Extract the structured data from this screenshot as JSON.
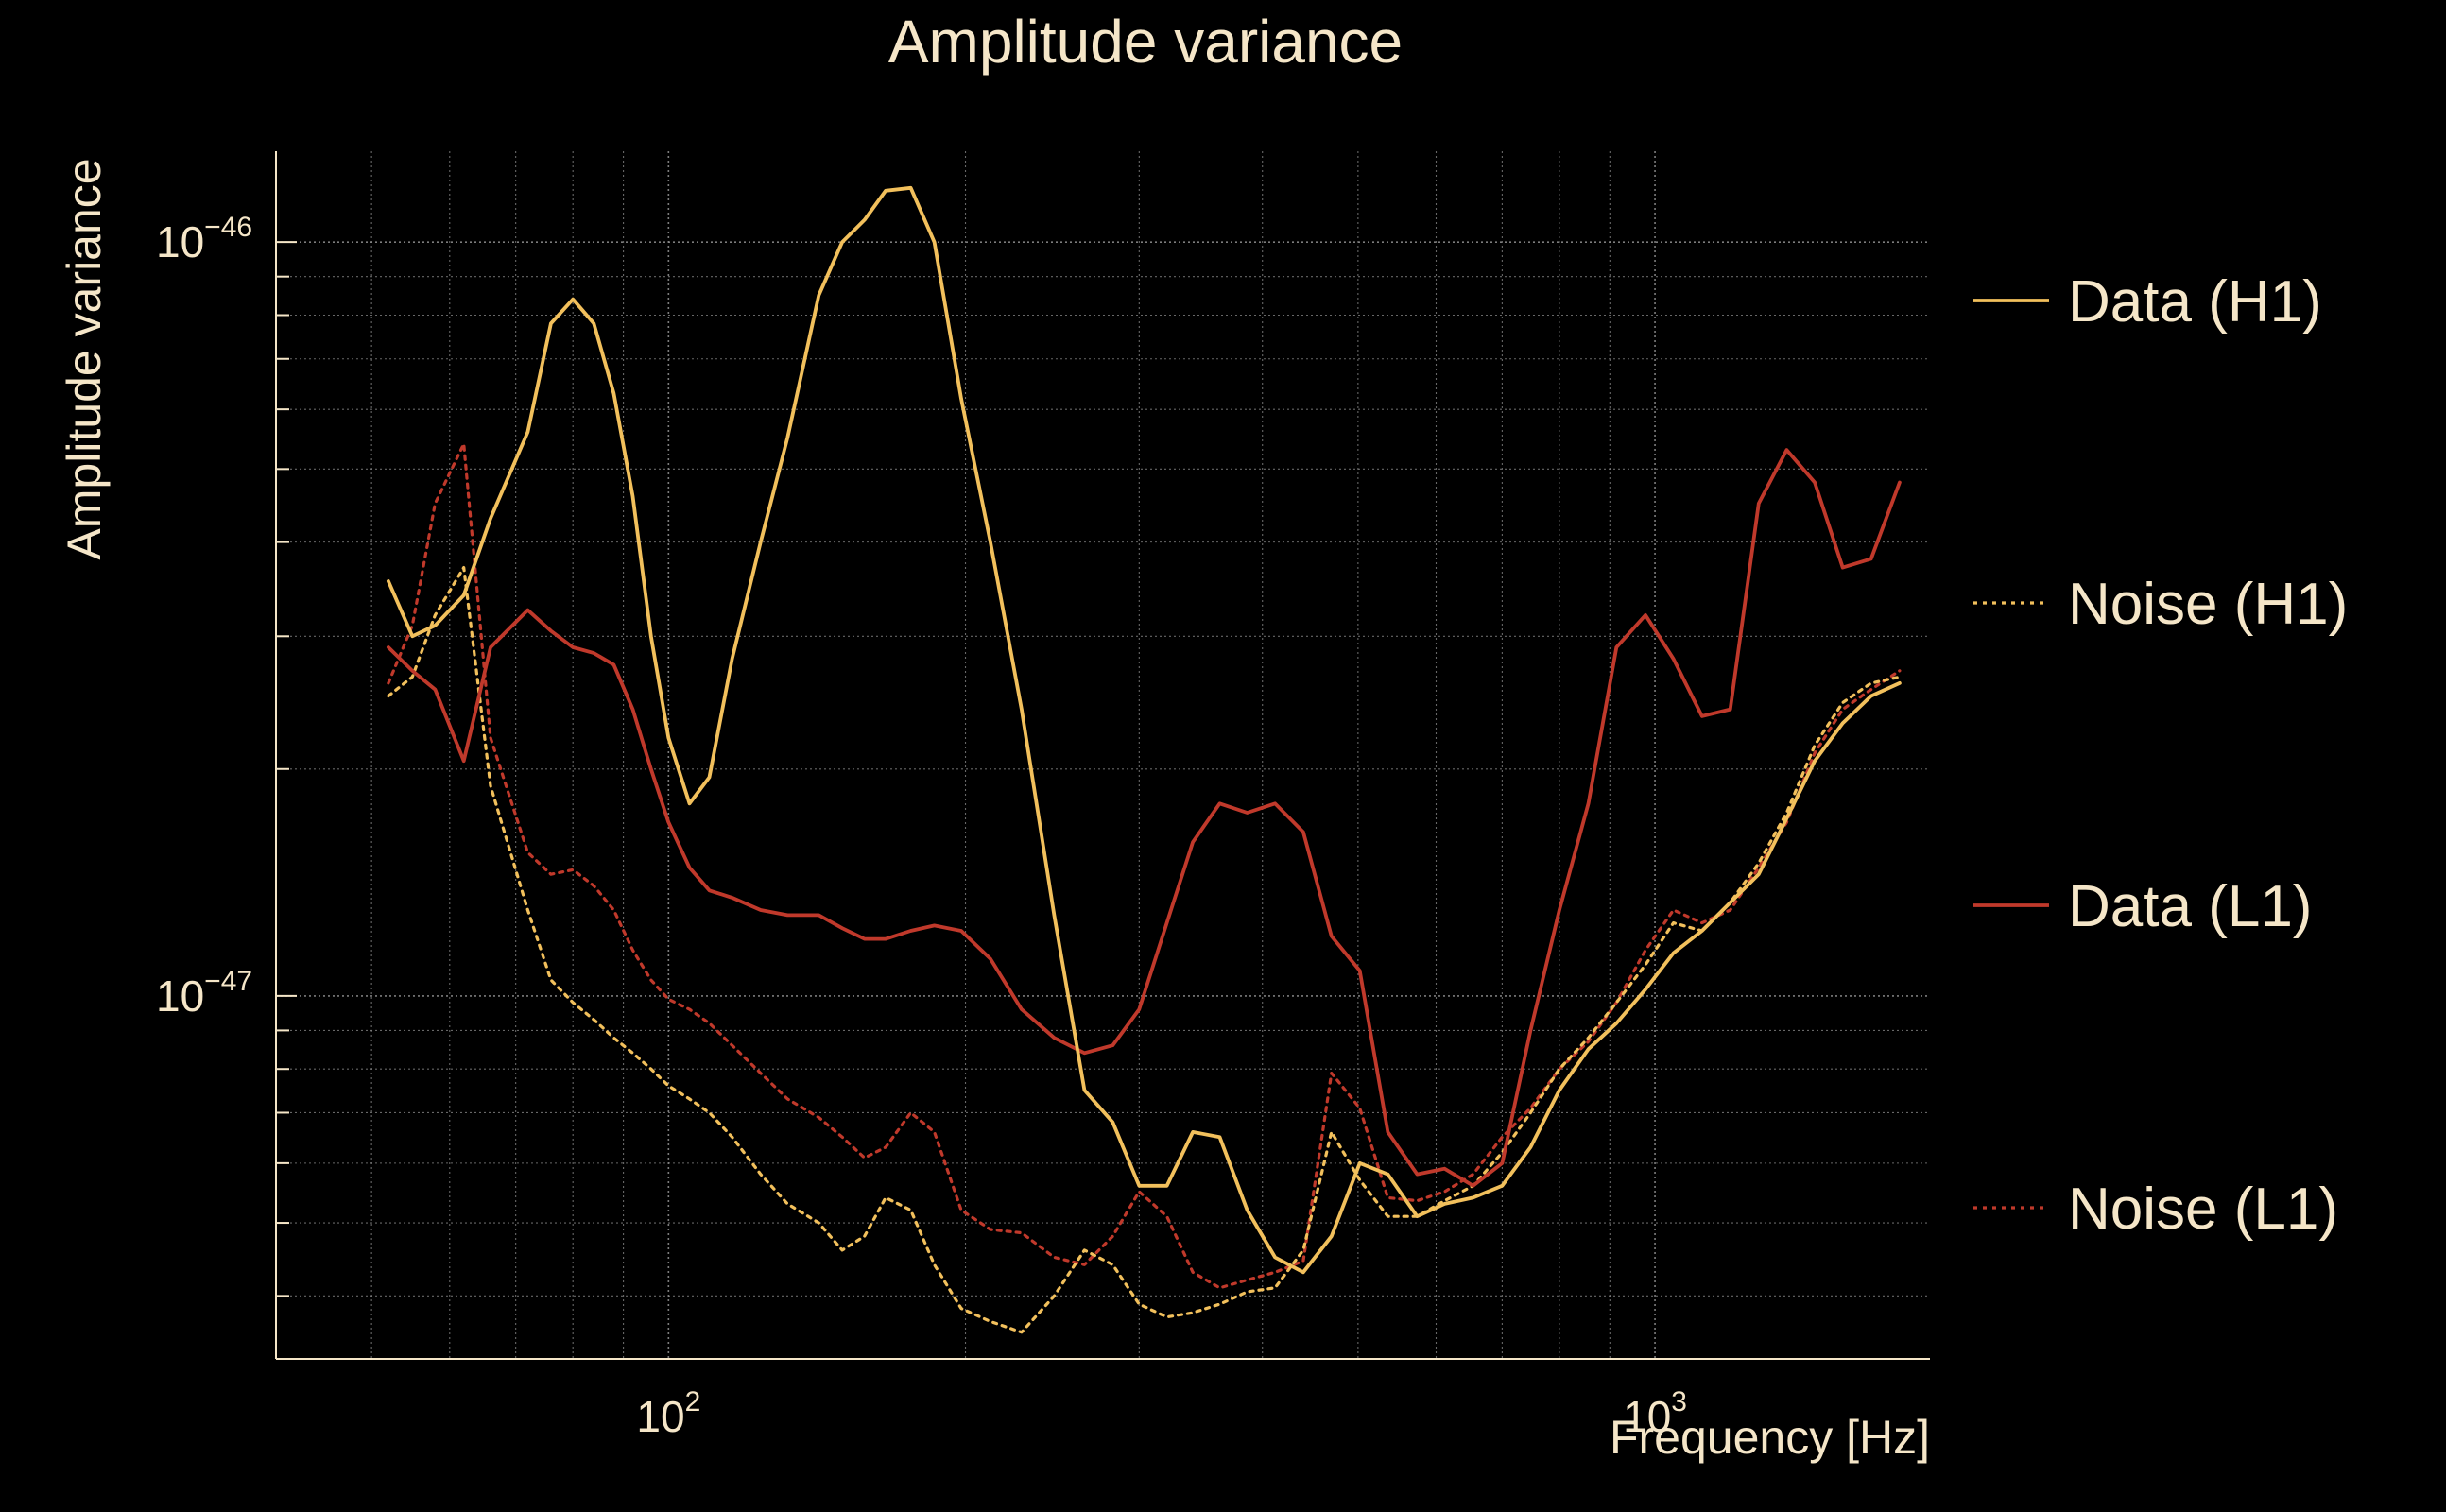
{
  "colors": {
    "background": "#000000",
    "text": "#f5e6c8",
    "grid": "#8a8a8a",
    "h1": "#f2c05c",
    "l1": "#c0392b"
  },
  "chart_data": {
    "type": "line",
    "title": "Amplitude variance",
    "xlabel": "Frequency [Hz]",
    "ylabel": "Amplitude variance",
    "xscale": "log",
    "yscale": "log",
    "xlim": [
      40,
      1900
    ],
    "ylim": [
      3.3e-48,
      1.32e-46
    ],
    "grid": true,
    "legend_position": "right",
    "x_ticks": [
      {
        "value": 100,
        "base": "10",
        "exp": "2"
      },
      {
        "value": 1000,
        "base": "10",
        "exp": "3"
      }
    ],
    "y_ticks": [
      {
        "value": 1e-47,
        "base": "10",
        "exp": "−47"
      },
      {
        "value": 1e-46,
        "base": "10",
        "exp": "−46"
      }
    ],
    "x": [
      52,
      55,
      58,
      62,
      66,
      72,
      76,
      80,
      84,
      88,
      92,
      96,
      100,
      105,
      110,
      116,
      124,
      132,
      142,
      150,
      158,
      166,
      176,
      186,
      198,
      212,
      228,
      246,
      264,
      282,
      300,
      320,
      340,
      362,
      386,
      412,
      440,
      470,
      502,
      536,
      574,
      612,
      654,
      700,
      748,
      800,
      856,
      914,
      978,
      1044,
      1116,
      1192,
      1274,
      1360,
      1452,
      1550,
      1656,
      1770
    ],
    "series": [
      {
        "name": "Data (H1)",
        "color": "h1",
        "dash": "solid",
        "values": [
          3.55e-47,
          3e-47,
          3.1e-47,
          3.4e-47,
          4.3e-47,
          5.6e-47,
          7.8e-47,
          8.4e-47,
          7.8e-47,
          6.3e-47,
          4.6e-47,
          3e-47,
          2.2e-47,
          1.8e-47,
          1.95e-47,
          2.8e-47,
          4e-47,
          5.5e-47,
          8.5e-47,
          1e-46,
          1.07e-46,
          1.17e-46,
          1.18e-46,
          1e-46,
          6.2e-47,
          4e-47,
          2.4e-47,
          1.28e-47,
          7.5e-48,
          6.8e-48,
          5.6e-48,
          5.6e-48,
          6.6e-48,
          6.5e-48,
          5.2e-48,
          4.5e-48,
          4.3e-48,
          4.8e-48,
          6e-48,
          5.8e-48,
          5.1e-48,
          5.3e-48,
          5.4e-48,
          5.6e-48,
          6.3e-48,
          7.5e-48,
          8.5e-48,
          9.2e-48,
          1.02e-47,
          1.14e-47,
          1.22e-47,
          1.33e-47,
          1.45e-47,
          1.72e-47,
          2.05e-47,
          2.3e-47,
          2.5e-47,
          2.6e-47
        ]
      },
      {
        "name": "Noise (H1)",
        "color": "h1",
        "dash": "dotted",
        "values": [
          2.5e-47,
          2.65e-47,
          3.2e-47,
          3.7e-47,
          1.9e-47,
          1.3e-47,
          1.05e-47,
          9.8e-48,
          9.3e-48,
          8.8e-48,
          8.4e-48,
          8e-48,
          7.6e-48,
          7.3e-48,
          7e-48,
          6.5e-48,
          5.8e-48,
          5.3e-48,
          5e-48,
          4.6e-48,
          4.8e-48,
          5.4e-48,
          5.2e-48,
          4.4e-48,
          3.85e-48,
          3.7e-48,
          3.58e-48,
          4e-48,
          4.6e-48,
          4.4e-48,
          3.9e-48,
          3.75e-48,
          3.8e-48,
          3.9e-48,
          4.05e-48,
          4.1e-48,
          4.6e-48,
          6.6e-48,
          5.7e-48,
          5.1e-48,
          5.1e-48,
          5.35e-48,
          5.6e-48,
          6.2e-48,
          7e-48,
          8e-48,
          8.8e-48,
          9.8e-48,
          1.1e-47,
          1.25e-47,
          1.22e-47,
          1.33e-47,
          1.5e-47,
          1.75e-47,
          2.15e-47,
          2.45e-47,
          2.6e-47,
          2.65e-47
        ]
      },
      {
        "name": "Data (L1)",
        "color": "l1",
        "dash": "solid",
        "values": [
          2.9e-47,
          2.7e-47,
          2.55e-47,
          2.05e-47,
          2.9e-47,
          3.25e-47,
          3.05e-47,
          2.9e-47,
          2.85e-47,
          2.75e-47,
          2.4e-47,
          2e-47,
          1.7e-47,
          1.48e-47,
          1.38e-47,
          1.35e-47,
          1.3e-47,
          1.28e-47,
          1.28e-47,
          1.23e-47,
          1.19e-47,
          1.19e-47,
          1.22e-47,
          1.24e-47,
          1.22e-47,
          1.12e-47,
          9.6e-48,
          8.8e-48,
          8.4e-48,
          8.6e-48,
          9.6e-48,
          1.25e-47,
          1.6e-47,
          1.8e-47,
          1.75e-47,
          1.8e-47,
          1.65e-47,
          1.2e-47,
          1.08e-47,
          6.6e-48,
          5.8e-48,
          5.9e-48,
          5.6e-48,
          6e-48,
          9e-48,
          1.3e-47,
          1.8e-47,
          2.9e-47,
          3.2e-47,
          2.8e-47,
          2.35e-47,
          2.4e-47,
          4.5e-47,
          5.3e-47,
          4.8e-47,
          3.7e-47,
          3.8e-47,
          4.8e-47
        ]
      },
      {
        "name": "Noise (L1)",
        "color": "l1",
        "dash": "dotted",
        "values": [
          2.6e-47,
          3.1e-47,
          4.5e-47,
          5.4e-47,
          2.2e-47,
          1.55e-47,
          1.45e-47,
          1.47e-47,
          1.4e-47,
          1.3e-47,
          1.15e-47,
          1.05e-47,
          9.9e-48,
          9.6e-48,
          9.2e-48,
          8.6e-48,
          7.9e-48,
          7.3e-48,
          6.9e-48,
          6.5e-48,
          6.1e-48,
          6.3e-48,
          7e-48,
          6.6e-48,
          5.2e-48,
          4.9e-48,
          4.85e-48,
          4.5e-48,
          4.4e-48,
          4.8e-48,
          5.5e-48,
          5.1e-48,
          4.3e-48,
          4.1e-48,
          4.2e-48,
          4.3e-48,
          4.45e-48,
          7.9e-48,
          7.1e-48,
          5.4e-48,
          5.35e-48,
          5.5e-48,
          5.8e-48,
          6.5e-48,
          7.1e-48,
          8e-48,
          8.7e-48,
          9.8e-48,
          1.15e-47,
          1.3e-47,
          1.25e-47,
          1.3e-47,
          1.48e-47,
          1.7e-47,
          2.1e-47,
          2.4e-47,
          2.55e-47,
          2.7e-47
        ]
      }
    ]
  }
}
